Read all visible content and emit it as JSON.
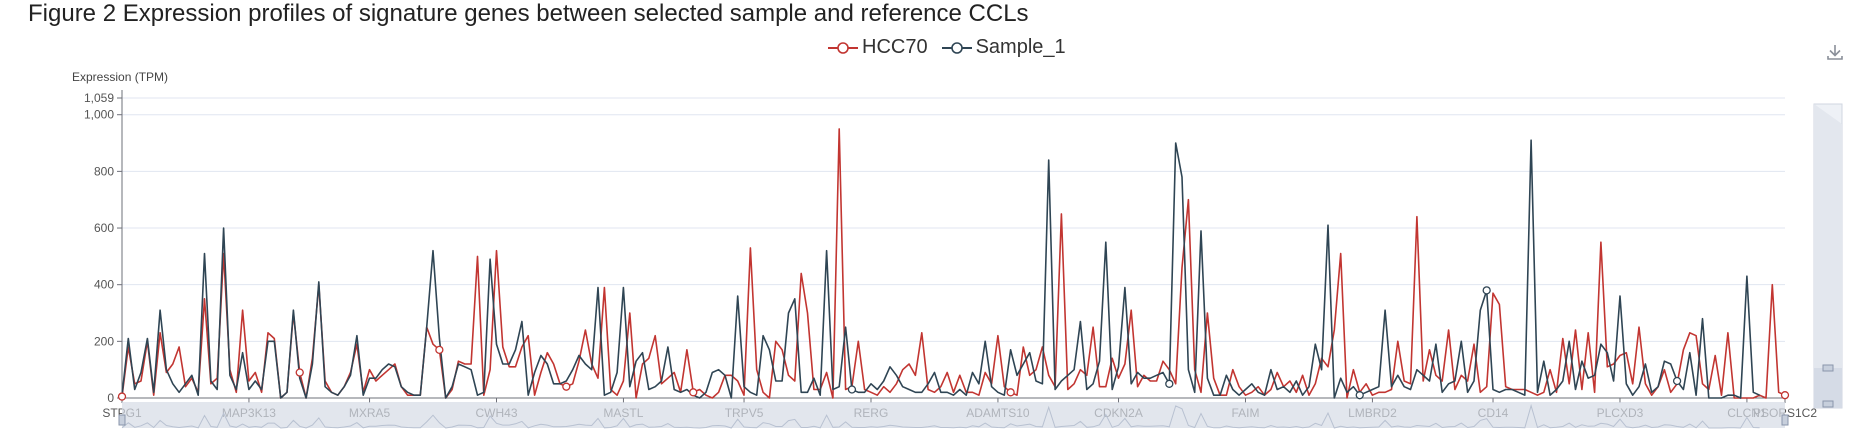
{
  "figure_title": "Figure 2 Expression profiles of signature genes between selected sample and reference CCLs",
  "toolbar": {
    "download_icon": "download-icon"
  },
  "colors": {
    "hcc70": "#c23531",
    "sample_1": "#2f4554",
    "grid": "#e0e6f1",
    "axis": "#6e7079",
    "zoom_fill": "#d5dbe6",
    "zoom_bg": "#eef1f6"
  },
  "chart_data": {
    "type": "line",
    "title": "Figure 2 Expression profiles of signature genes between selected sample and reference CCLs",
    "ylabel": "Expression (TPM)",
    "xlabel": "",
    "ylim": [
      0,
      1059
    ],
    "y_ticks": [
      0,
      200,
      400,
      600,
      800,
      1000,
      1059
    ],
    "y_tick_labels": [
      "0",
      "200",
      "400",
      "600",
      "800",
      "1,000",
      "1,059"
    ],
    "grid": true,
    "legend_position": "top-center",
    "x_tick_labels": [
      "STPG1",
      "MAP3K13",
      "MXRA5",
      "CWH43",
      "MASTL",
      "TRPV5",
      "RERG",
      "ADAMTS10",
      "CDKN2A",
      "FAIM",
      "LMBRD2",
      "CD14",
      "PLCXD3",
      "CLCN1",
      "PSORS1C2"
    ],
    "points_per_label": 19.67,
    "series": [
      {
        "name": "HCC70",
        "values": [
          5,
          180,
          50,
          60,
          200,
          10,
          230,
          90,
          120,
          180,
          40,
          70,
          20,
          350,
          50,
          70,
          510,
          100,
          20,
          310,
          60,
          90,
          20,
          230,
          210,
          0,
          20,
          300,
          90,
          0,
          140,
          400,
          60,
          20,
          10,
          40,
          90,
          190,
          20,
          100,
          60,
          80,
          100,
          120,
          40,
          10,
          10,
          10,
          250,
          190,
          170,
          0,
          30,
          130,
          120,
          120,
          500,
          10,
          100,
          520,
          180,
          110,
          110,
          180,
          220,
          10,
          90,
          160,
          120,
          50,
          40,
          50,
          130,
          240,
          120,
          70,
          390,
          30,
          10,
          60,
          300,
          0,
          120,
          140,
          220,
          50,
          70,
          90,
          20,
          170,
          20,
          30,
          10,
          0,
          20,
          80,
          80,
          60,
          10,
          530,
          100,
          20,
          0,
          200,
          170,
          80,
          60,
          440,
          300,
          30,
          30,
          90,
          0,
          950,
          30,
          40,
          200,
          30,
          20,
          10,
          40,
          20,
          50,
          100,
          120,
          80,
          230,
          30,
          20,
          40,
          90,
          20,
          80,
          20,
          20,
          10,
          90,
          50,
          220,
          40,
          20,
          10,
          180,
          80,
          100,
          180,
          80,
          40,
          650,
          30,
          50,
          100,
          80,
          250,
          40,
          40,
          140,
          70,
          120,
          310,
          40,
          80,
          60,
          60,
          130,
          100,
          50,
          460,
          700,
          100,
          20,
          300,
          70,
          10,
          10,
          100,
          40,
          10,
          20,
          40,
          10,
          30,
          90,
          40,
          60,
          20,
          80,
          10,
          50,
          140,
          110,
          240,
          510,
          0,
          100,
          20,
          50,
          10,
          20,
          20,
          30,
          200,
          60,
          50,
          640,
          60,
          170,
          80,
          60,
          240,
          30,
          80,
          60,
          190,
          20,
          40,
          370,
          330,
          40,
          30,
          30,
          30,
          20,
          10,
          20,
          100,
          20,
          210,
          50,
          240,
          30,
          230,
          20,
          550,
          110,
          120,
          150,
          160,
          50,
          250,
          50,
          10,
          40,
          100,
          20,
          50,
          170,
          230,
          220,
          50,
          30,
          150,
          10,
          230,
          0,
          0,
          0,
          0,
          10,
          0,
          400,
          20,
          10
        ],
        "color": "#c23531"
      },
      {
        "name": "Sample_1",
        "values": [
          10,
          210,
          30,
          90,
          210,
          20,
          310,
          100,
          50,
          20,
          50,
          80,
          10,
          510,
          60,
          30,
          600,
          80,
          30,
          160,
          30,
          60,
          30,
          200,
          200,
          0,
          20,
          310,
          70,
          0,
          120,
          410,
          40,
          20,
          10,
          40,
          80,
          220,
          10,
          70,
          70,
          100,
          120,
          110,
          40,
          20,
          10,
          10,
          250,
          520,
          210,
          0,
          40,
          120,
          110,
          100,
          10,
          20,
          490,
          190,
          120,
          120,
          170,
          270,
          10,
          90,
          150,
          120,
          50,
          50,
          60,
          100,
          150,
          120,
          100,
          390,
          10,
          20,
          90,
          390,
          40,
          130,
          160,
          30,
          40,
          60,
          180,
          30,
          20,
          30,
          10,
          0,
          20,
          90,
          100,
          80,
          0,
          360,
          40,
          20,
          10,
          220,
          170,
          60,
          60,
          300,
          350,
          20,
          20,
          70,
          10,
          520,
          30,
          40,
          250,
          30,
          20,
          20,
          50,
          30,
          60,
          110,
          80,
          40,
          30,
          20,
          20,
          50,
          90,
          20,
          20,
          10,
          30,
          10,
          90,
          50,
          200,
          40,
          20,
          10,
          170,
          80,
          120,
          160,
          60,
          50,
          840,
          30,
          60,
          80,
          100,
          270,
          30,
          50,
          130,
          550,
          30,
          110,
          390,
          50,
          90,
          70,
          70,
          80,
          90,
          50,
          900,
          780,
          100,
          20,
          590,
          70,
          10,
          10,
          80,
          30,
          10,
          30,
          50,
          20,
          10,
          100,
          30,
          40,
          20,
          60,
          10,
          40,
          190,
          100,
          610,
          0,
          70,
          20,
          40,
          10,
          20,
          30,
          40,
          310,
          40,
          80,
          40,
          30,
          100,
          80,
          60,
          190,
          20,
          50,
          60,
          200,
          20,
          60,
          310,
          380,
          30,
          20,
          30,
          30,
          20,
          10,
          910,
          20,
          130,
          10,
          30,
          60,
          200,
          30,
          130,
          70,
          80,
          190,
          160,
          60,
          360,
          50,
          10,
          40,
          120,
          20,
          40,
          130,
          120,
          60,
          30,
          160,
          10,
          280,
          0,
          0,
          0,
          10,
          10,
          0,
          430,
          20,
          10
        ],
        "color": "#2f4554"
      }
    ]
  }
}
